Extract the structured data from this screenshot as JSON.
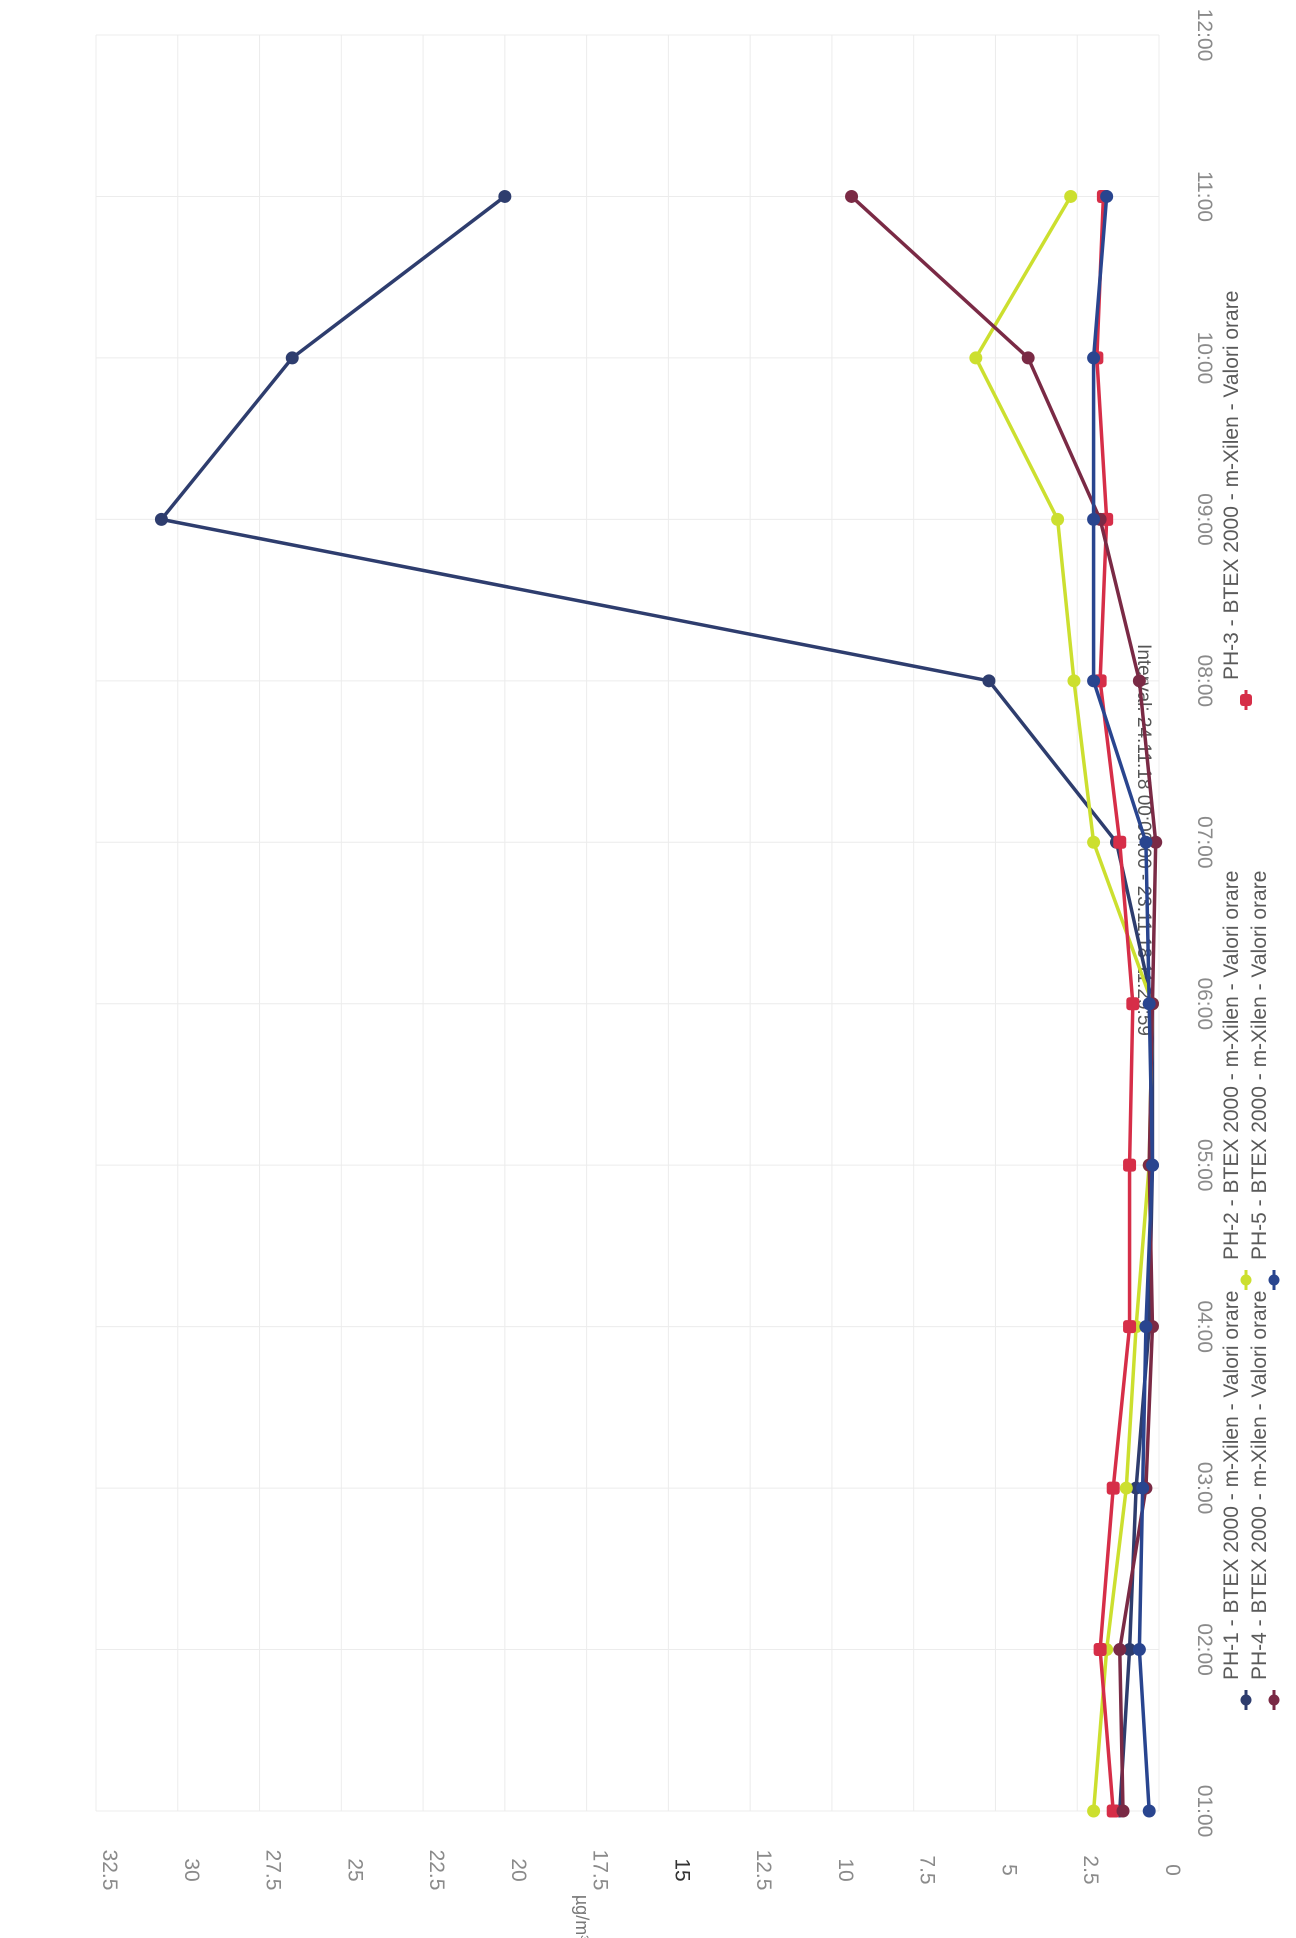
{
  "page": {
    "title": "Interval: 24.11.18 00:00:00 - 23.11.18 11:29:59"
  },
  "colors": {
    "PH-1": "#2e3d6e",
    "PH-2": "#ccdf2f",
    "PH-3": "#d62e48",
    "PH-4": "#7a2a45",
    "PH-5": "#29458f"
  },
  "chart_data": {
    "type": "line",
    "orientation": "rotated 90° clockwise (x axis runs bottom-to-top, y axis runs left-to-right)",
    "title": "Interval: 24.11.18 00:00:00 - 23.11.18 11:29:59",
    "xlabel": "",
    "ylabel": "µg/m³",
    "ylim": [
      0,
      32.5
    ],
    "yticks": [
      "0",
      "2.5",
      "5",
      "7.5",
      "10",
      "12.5",
      "15",
      "17.5",
      "20",
      "22.5",
      "25",
      "27.5",
      "30",
      "32.5"
    ],
    "x_tick_labels": [
      "01:00",
      "02:00",
      "03:00",
      "04:00",
      "05:00",
      "06:00",
      "07:00",
      "08:00",
      "09:00",
      "10:00",
      "11:00",
      "12:00"
    ],
    "x": [
      "01:00",
      "02:00",
      "03:00",
      "04:00",
      "05:00",
      "06:00",
      "07:00",
      "08:00",
      "09:00",
      "10:00",
      "11:00"
    ],
    "grid": true,
    "legend_position": "bottom",
    "series": [
      {
        "name": "PH-1 - BTEX 2000 - m-Xilen - Valori orare",
        "color": "#2e3d6e",
        "marker": "circle",
        "values": [
          1.2,
          0.9,
          0.7,
          0.3,
          0.2,
          0.2,
          1.3,
          5.2,
          30.5,
          26.5,
          20.0
        ]
      },
      {
        "name": "PH-2 - BTEX 2000 - m-Xilen - Valori orare",
        "color": "#ccdf2f",
        "marker": "circle",
        "values": [
          2.0,
          1.6,
          1.0,
          0.7,
          0.3,
          0.2,
          2.0,
          2.6,
          3.1,
          5.6,
          2.7
        ]
      },
      {
        "name": "PH-3 - BTEX 2000 - m-Xilen - Valori orare",
        "color": "#d62e48",
        "marker": "square",
        "values": [
          1.4,
          1.8,
          1.4,
          0.9,
          0.9,
          0.8,
          1.2,
          1.8,
          1.6,
          1.9,
          1.7
        ]
      },
      {
        "name": "PH-4 - BTEX 2000 - m-Xilen - Valori orare",
        "color": "#7a2a45",
        "marker": "circle",
        "values": [
          1.1,
          1.2,
          0.4,
          0.2,
          0.3,
          0.2,
          0.1,
          0.6,
          1.8,
          4.0,
          9.4
        ]
      },
      {
        "name": "PH-5 - BTEX 2000 - m-Xilen - Valori orare",
        "color": "#29458f",
        "marker": "circle",
        "values": [
          0.3,
          0.6,
          0.5,
          0.4,
          0.2,
          0.3,
          0.4,
          2.0,
          2.0,
          2.0,
          1.6
        ]
      }
    ]
  }
}
